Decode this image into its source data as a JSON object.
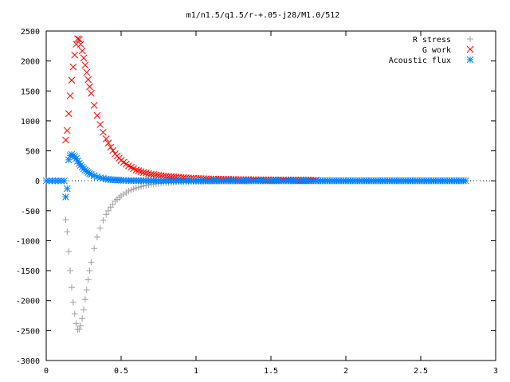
{
  "chart_data": {
    "type": "scatter",
    "title": "m1/n1.5/q1.5/r-+.05-j28/M1.0/512",
    "xlabel": "",
    "ylabel": "",
    "xlim": [
      0,
      3
    ],
    "ylim": [
      -3000,
      2500
    ],
    "x_ticks": [
      "0",
      "0.5",
      "1",
      "1.5",
      "2",
      "2.5",
      "3"
    ],
    "y_ticks": [
      "2500",
      "2000",
      "1500",
      "1000",
      "500",
      "0",
      "-500",
      "-1000",
      "-1500",
      "-2000",
      "-2500",
      "-3000"
    ],
    "legend_position": "top-right",
    "grid": false,
    "series": [
      {
        "name": "R stress",
        "marker": "plus",
        "color": "#a0a0a0",
        "x": [
          0.13,
          0.14,
          0.15,
          0.16,
          0.17,
          0.18,
          0.19,
          0.2,
          0.21,
          0.22,
          0.23,
          0.24,
          0.25,
          0.26,
          0.27,
          0.28,
          0.29,
          0.3,
          0.32,
          0.34,
          0.36,
          0.38,
          0.4,
          0.43,
          0.46,
          0.5,
          0.55,
          0.6,
          0.65,
          0.7,
          0.75,
          0.8,
          0.9,
          1.0,
          1.1,
          1.2,
          1.3,
          1.4,
          1.5,
          1.6,
          1.7,
          1.8
        ],
        "y": [
          -650,
          -850,
          -1180,
          -1500,
          -1780,
          -2030,
          -2220,
          -2380,
          -2480,
          -2480,
          -2420,
          -2300,
          -2150,
          -1980,
          -1820,
          -1650,
          -1500,
          -1360,
          -1130,
          -940,
          -790,
          -660,
          -560,
          -440,
          -340,
          -250,
          -170,
          -120,
          -85,
          -60,
          -45,
          -33,
          -18,
          -10,
          -6,
          -4,
          -3,
          -2,
          -1,
          -1,
          0,
          0
        ]
      },
      {
        "name": "G work",
        "marker": "cross",
        "color": "#ff0000",
        "x": [
          0.13,
          0.14,
          0.15,
          0.16,
          0.17,
          0.18,
          0.19,
          0.2,
          0.21,
          0.22,
          0.23,
          0.24,
          0.25,
          0.26,
          0.27,
          0.28,
          0.29,
          0.3,
          0.32,
          0.34,
          0.36,
          0.38,
          0.4,
          0.43,
          0.46,
          0.5,
          0.55,
          0.6,
          0.65,
          0.7,
          0.75,
          0.8,
          0.9,
          1.0,
          1.1,
          1.2,
          1.3,
          1.4,
          1.5,
          1.6,
          1.7,
          1.8
        ],
        "y": [
          680,
          840,
          1120,
          1420,
          1680,
          1900,
          2100,
          2280,
          2370,
          2360,
          2280,
          2170,
          2050,
          1930,
          1810,
          1690,
          1570,
          1460,
          1260,
          1090,
          940,
          810,
          700,
          560,
          450,
          340,
          250,
          180,
          140,
          110,
          90,
          75,
          55,
          40,
          30,
          25,
          20,
          17,
          15,
          13,
          12,
          10
        ]
      },
      {
        "name": "Acoustic flux",
        "marker": "star",
        "color": "#0080ff",
        "x": [
          0.13,
          0.14,
          0.15,
          0.16,
          0.17,
          0.18,
          0.19,
          0.2,
          0.21,
          0.22,
          0.23,
          0.24,
          0.25,
          0.26,
          0.27,
          0.28,
          0.29,
          0.3,
          0.32,
          0.34,
          0.36,
          0.38,
          0.4,
          0.43,
          0.46,
          0.5,
          0.55,
          0.6,
          0.65,
          0.7,
          0.75,
          0.8,
          0.9,
          1.0,
          1.2,
          1.4,
          1.6,
          1.8,
          2.0,
          2.2,
          2.4,
          2.6,
          2.8
        ],
        "y": [
          -270,
          -130,
          350,
          420,
          440,
          420,
          400,
          370,
          330,
          290,
          260,
          230,
          200,
          180,
          160,
          140,
          120,
          105,
          85,
          65,
          50,
          40,
          30,
          20,
          15,
          10,
          5,
          3,
          2,
          1,
          0,
          0,
          0,
          0,
          0,
          0,
          0,
          0,
          0,
          0,
          0,
          0,
          0
        ]
      },
      {
        "name": "",
        "marker": "star",
        "color": "#0080ff",
        "x": [
          0.0,
          0.02,
          0.04,
          0.06,
          0.08,
          0.1,
          0.12
        ],
        "y": [
          0,
          0,
          0,
          0,
          0,
          0,
          0
        ]
      }
    ]
  }
}
